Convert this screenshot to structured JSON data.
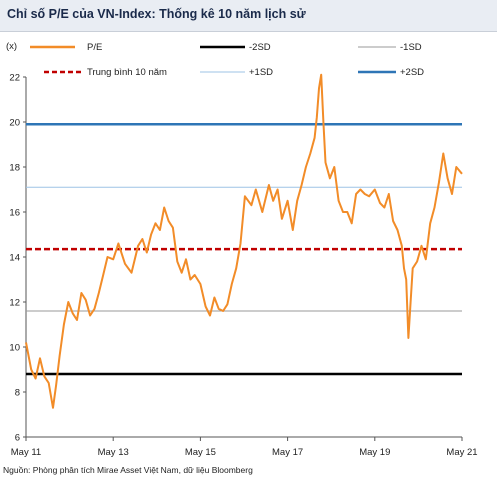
{
  "title": "Chỉ số P/E của VN-Index: Thống kê 10 năm lịch sử",
  "source": "Nguồn: Phòng phân tích Mirae Asset Việt Nam, dữ liệu Bloomberg",
  "colors": {
    "pe": "#f28c28",
    "minus2sd": "#000000",
    "minus1sd": "#9a9a9a",
    "mean": "#c00000",
    "plus1sd": "#9dc3e6",
    "plus2sd": "#2e75b6"
  },
  "chart_data": {
    "type": "line",
    "title": "Chỉ số P/E của VN-Index: Thống kê 10 năm lịch sử",
    "ylabel": "(x)",
    "xlabel": "",
    "ylim": [
      6,
      22
    ],
    "yticks": [
      6,
      8,
      10,
      12,
      14,
      16,
      18,
      20,
      22
    ],
    "xlim": [
      2011.33,
      2021.33
    ],
    "xticks": [
      {
        "value": 2011.33,
        "label": "May 11"
      },
      {
        "value": 2013.33,
        "label": "May 13"
      },
      {
        "value": 2015.33,
        "label": "May 15"
      },
      {
        "value": 2017.33,
        "label": "May 17"
      },
      {
        "value": 2019.33,
        "label": "May 19"
      },
      {
        "value": 2021.33,
        "label": "May 21"
      }
    ],
    "legend_placement": "top",
    "reference_lines": [
      {
        "name": "-2SD",
        "value": 8.8,
        "style": "solid-thick"
      },
      {
        "name": "-1SD",
        "value": 11.6,
        "style": "solid-thin"
      },
      {
        "name": "Trung bình 10 năm",
        "value": 14.35,
        "style": "dashed"
      },
      {
        "name": "+1SD",
        "value": 17.1,
        "style": "solid-thin"
      },
      {
        "name": "+2SD",
        "value": 19.9,
        "style": "solid-thick"
      }
    ],
    "series": [
      {
        "name": "P/E",
        "x": [
          2011.33,
          2011.45,
          2011.55,
          2011.65,
          2011.75,
          2011.85,
          2011.95,
          2012.02,
          2012.1,
          2012.2,
          2012.3,
          2012.4,
          2012.5,
          2012.6,
          2012.7,
          2012.8,
          2012.9,
          2013.0,
          2013.1,
          2013.2,
          2013.33,
          2013.45,
          2013.6,
          2013.75,
          2013.9,
          2014.0,
          2014.1,
          2014.2,
          2014.3,
          2014.4,
          2014.5,
          2014.6,
          2014.7,
          2014.8,
          2014.9,
          2015.0,
          2015.1,
          2015.2,
          2015.33,
          2015.45,
          2015.55,
          2015.65,
          2015.75,
          2015.85,
          2015.95,
          2016.05,
          2016.15,
          2016.25,
          2016.35,
          2016.5,
          2016.6,
          2016.75,
          2016.9,
          2017.0,
          2017.1,
          2017.2,
          2017.33,
          2017.45,
          2017.55,
          2017.65,
          2017.75,
          2017.85,
          2017.95,
          2018.0,
          2018.05,
          2018.1,
          2018.15,
          2018.2,
          2018.3,
          2018.4,
          2018.5,
          2018.6,
          2018.7,
          2018.8,
          2018.9,
          2019.0,
          2019.1,
          2019.2,
          2019.33,
          2019.45,
          2019.55,
          2019.65,
          2019.75,
          2019.85,
          2019.95,
          2020.0,
          2020.05,
          2020.1,
          2020.15,
          2020.2,
          2020.3,
          2020.4,
          2020.5,
          2020.6,
          2020.7,
          2020.8,
          2020.9,
          2021.0,
          2021.1,
          2021.2,
          2021.33
        ],
        "values": [
          10.2,
          9.0,
          8.6,
          9.5,
          8.7,
          8.4,
          7.3,
          8.3,
          9.6,
          11.0,
          12.0,
          11.5,
          11.2,
          12.4,
          12.1,
          11.4,
          11.7,
          12.4,
          13.2,
          14.0,
          13.9,
          14.6,
          13.7,
          13.3,
          14.5,
          14.8,
          14.2,
          15.0,
          15.5,
          15.2,
          16.2,
          15.6,
          15.3,
          13.8,
          13.3,
          13.9,
          13.0,
          13.2,
          12.8,
          11.8,
          11.4,
          12.2,
          11.7,
          11.6,
          11.9,
          12.8,
          13.5,
          14.6,
          16.7,
          16.3,
          17.0,
          16.0,
          17.2,
          16.5,
          17.0,
          15.7,
          16.5,
          15.2,
          16.5,
          17.2,
          18.0,
          18.6,
          19.3,
          20.2,
          21.5,
          22.1,
          20.0,
          18.2,
          17.5,
          18.0,
          16.5,
          16.0,
          16.0,
          15.5,
          16.8,
          17.0,
          16.8,
          16.7,
          17.0,
          16.4,
          16.2,
          16.8,
          15.6,
          15.2,
          14.5,
          13.5,
          13.0,
          10.4,
          12.0,
          13.5,
          13.8,
          14.5,
          13.9,
          15.5,
          16.2,
          17.3,
          18.6,
          17.5,
          16.8,
          18.0,
          17.7
        ]
      }
    ]
  }
}
